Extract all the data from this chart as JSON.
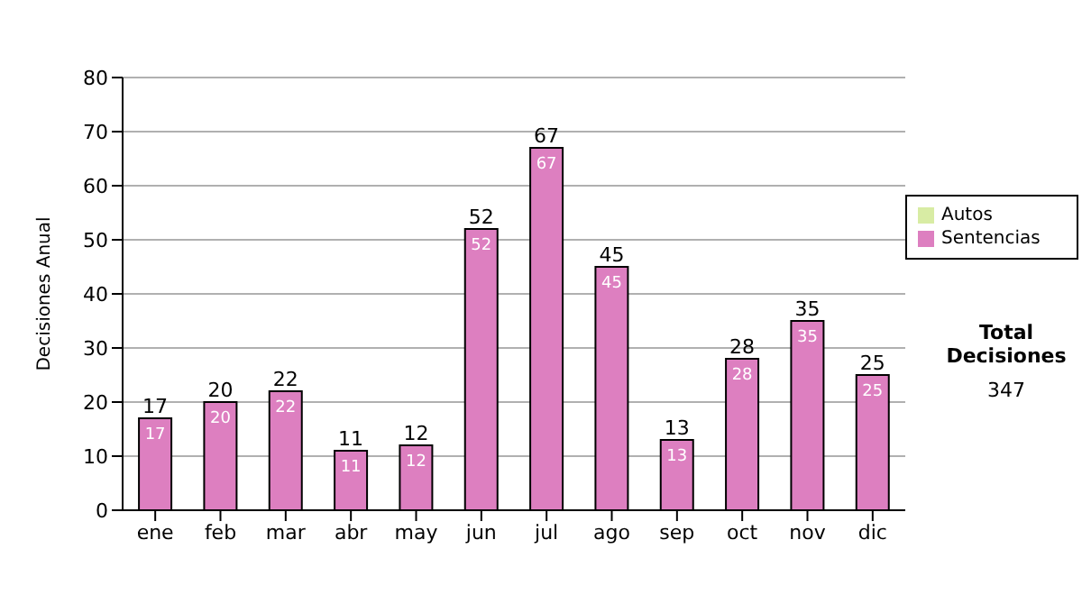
{
  "chart_data": {
    "type": "bar",
    "ylabel": "Decisiones Anual",
    "categories": [
      "ene",
      "feb",
      "mar",
      "abr",
      "may",
      "jun",
      "jul",
      "ago",
      "sep",
      "oct",
      "nov",
      "dic"
    ],
    "series": [
      {
        "name": "Sentencias",
        "color": "#dd7fc0",
        "values": [
          17,
          20,
          22,
          11,
          12,
          52,
          67,
          45,
          13,
          28,
          35,
          25
        ]
      },
      {
        "name": "Autos",
        "color": "#d8eca4",
        "values": [
          null,
          null,
          null,
          null,
          null,
          null,
          null,
          null,
          null,
          null,
          null,
          null
        ]
      }
    ],
    "stacked": true,
    "data_labels": true,
    "totals": [
      "17",
      "20",
      "22",
      "11",
      "12",
      "52",
      "67",
      "45",
      "13",
      "28",
      "35",
      "25"
    ],
    "ylim": [
      0,
      80
    ],
    "yticks": [
      0,
      10,
      20,
      30,
      40,
      50,
      60,
      70,
      80
    ],
    "grid": "y",
    "legend": "right",
    "annotations": [
      "Total Decisiones",
      "347"
    ]
  }
}
